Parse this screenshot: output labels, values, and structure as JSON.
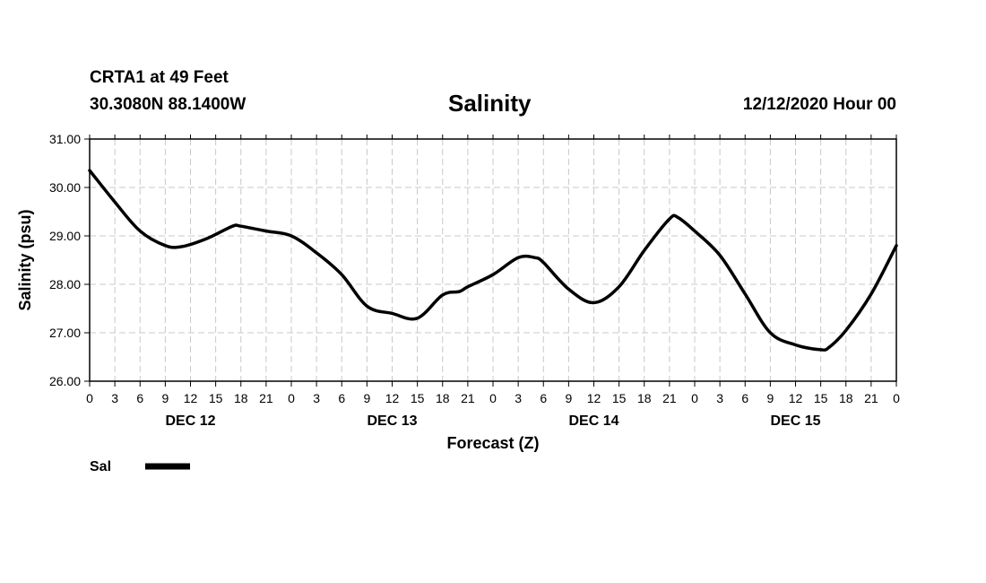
{
  "header": {
    "station": "CRTA1 at 49 Feet",
    "coords": "30.3080N 88.1400W",
    "title": "Salinity",
    "date": "12/12/2020 Hour 00"
  },
  "chart_data": {
    "type": "line",
    "title": "Salinity",
    "xlabel": "Forecast (Z)",
    "ylabel": "Salinity (psu)",
    "ylim": [
      26.0,
      31.0
    ],
    "yticks": [
      "26.00",
      "27.00",
      "28.00",
      "29.00",
      "30.00",
      "31.00"
    ],
    "xlim": [
      0,
      96
    ],
    "xtick_labels": [
      "0",
      "3",
      "6",
      "9",
      "12",
      "15",
      "18",
      "21",
      "0",
      "3",
      "6",
      "9",
      "12",
      "15",
      "18",
      "21",
      "0",
      "3",
      "6",
      "9",
      "12",
      "15",
      "18",
      "21",
      "0",
      "3",
      "6",
      "9",
      "12",
      "15",
      "18",
      "21",
      "0"
    ],
    "day_labels": [
      {
        "label": "DEC 12",
        "hour": 12
      },
      {
        "label": "DEC 13",
        "hour": 36
      },
      {
        "label": "DEC 14",
        "hour": 60
      },
      {
        "label": "DEC 15",
        "hour": 84
      }
    ],
    "grid": true,
    "series": [
      {
        "name": "Sal",
        "color": "#000000",
        "x": [
          0,
          3,
          6,
          9,
          11,
          14,
          17,
          18,
          21,
          24,
          27,
          30,
          33,
          36,
          39,
          42,
          44,
          45,
          48,
          51,
          53,
          54,
          57,
          60,
          63,
          66,
          69,
          70,
          72,
          75,
          78,
          81,
          84,
          87,
          88,
          90,
          93,
          96
        ],
        "values": [
          30.35,
          29.7,
          29.1,
          28.8,
          28.78,
          28.95,
          29.2,
          29.2,
          29.1,
          29.0,
          28.65,
          28.2,
          27.55,
          27.4,
          27.3,
          27.78,
          27.85,
          27.95,
          28.2,
          28.55,
          28.55,
          28.45,
          27.9,
          27.62,
          27.95,
          28.7,
          29.35,
          29.38,
          29.1,
          28.6,
          27.8,
          27.0,
          26.75,
          26.65,
          26.7,
          27.05,
          27.8,
          28.8
        ]
      }
    ],
    "legend": {
      "label": "Sal",
      "position": "bottom-left"
    }
  }
}
